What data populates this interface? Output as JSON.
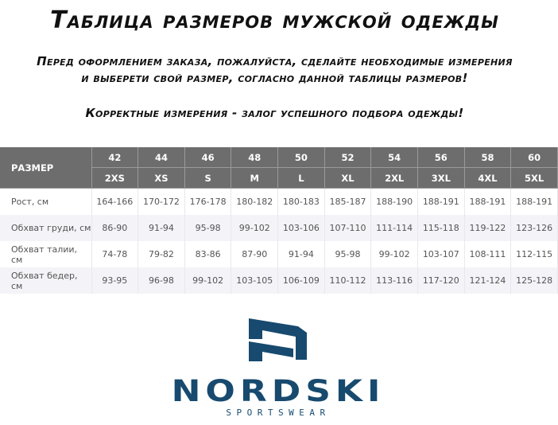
{
  "header": {
    "title": "Таблица размеров мужской одежды",
    "line1": "Перед оформлением заказа, пожалуйста, сделайте необходимые измерения",
    "line2": "и выберети свой размер, согласно данной таблицы размеров!",
    "line3": "Корректные измерения - залог успешного подбора одежды!"
  },
  "table": {
    "corner_label": "РАЗМЕР",
    "sizes_ru": [
      "42",
      "44",
      "46",
      "48",
      "50",
      "52",
      "54",
      "56",
      "58",
      "60"
    ],
    "sizes_intl": [
      "2XS",
      "XS",
      "S",
      "M",
      "L",
      "XL",
      "2XL",
      "3XL",
      "4XL",
      "5XL"
    ],
    "rows": [
      {
        "label": "Рост, см",
        "values": [
          "164-166",
          "170-172",
          "176-178",
          "180-182",
          "180-183",
          "185-187",
          "188-190",
          "188-191",
          "188-191",
          "188-191"
        ]
      },
      {
        "label": "Обхват груди, см",
        "values": [
          "86-90",
          "91-94",
          "95-98",
          "99-102",
          "103-106",
          "107-110",
          "111-114",
          "115-118",
          "119-122",
          "123-126"
        ]
      },
      {
        "label": "Обхват талии, см",
        "values": [
          "74-78",
          "79-82",
          "83-86",
          "87-90",
          "91-94",
          "95-98",
          "99-102",
          "103-107",
          "108-111",
          "112-115"
        ]
      },
      {
        "label": "Обхват бедер, см",
        "values": [
          "93-95",
          "96-98",
          "99-102",
          "103-105",
          "106-109",
          "110-112",
          "113-116",
          "117-120",
          "121-124",
          "125-128"
        ]
      }
    ]
  },
  "logo": {
    "brand": "NORDSKI",
    "tagline": "SPORTSWEAR",
    "color": "#174a6e"
  }
}
